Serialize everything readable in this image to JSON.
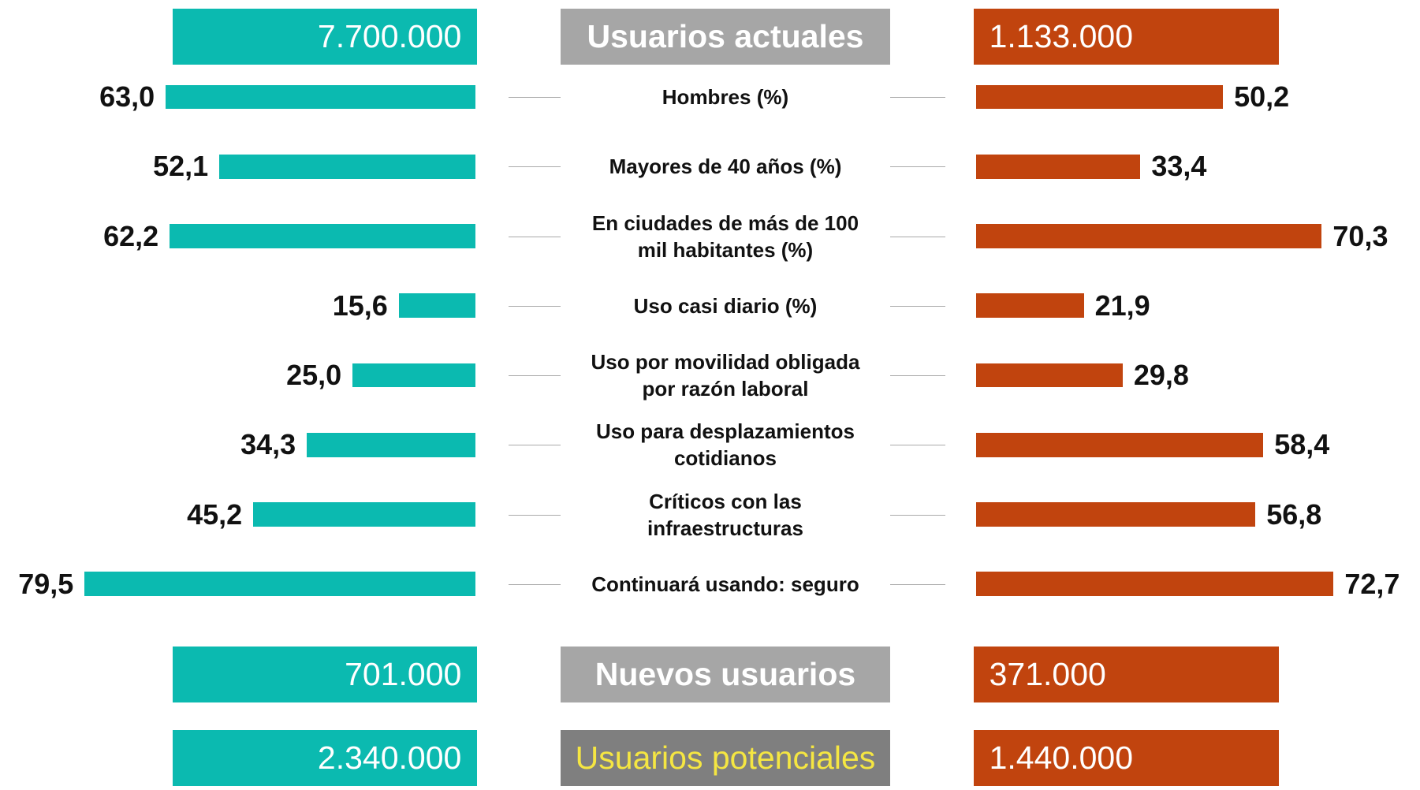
{
  "chart_data": {
    "type": "butterfly",
    "categories": [
      "Hombres (%)",
      "Mayores de 40 años (%)",
      "En ciudades de más de 100\nmil habitantes (%)",
      "Uso casi diario (%)",
      "Uso por movilidad obligada\npor razón laboral",
      "Uso para desplazamientos\ncotidianos",
      "Críticos con las\ninfraestructuras",
      "Continuará usando: seguro"
    ],
    "series": [
      {
        "color": "#0bbab0",
        "values": [
          63.0,
          52.1,
          62.2,
          15.6,
          25.0,
          34.3,
          45.2,
          79.5
        ],
        "value_labels": [
          "63,0",
          "52,1",
          "62,2",
          "15,6",
          "25,0",
          "34,3",
          "45,2",
          "79,5"
        ]
      },
      {
        "color": "#c1440e",
        "values": [
          50.2,
          33.4,
          70.3,
          21.9,
          29.8,
          58.4,
          56.8,
          72.7
        ],
        "value_labels": [
          "50,2",
          "33,4",
          "70,3",
          "21,9",
          "29,8",
          "58,4",
          "56,8",
          "72,7"
        ]
      }
    ],
    "summary": [
      {
        "label": "Usuarios actuales",
        "left": "7.700.000",
        "right": "1.133.000"
      },
      {
        "label": "Nuevos usuarios",
        "left": "701.000",
        "right": "371.000"
      },
      {
        "label": "Usuarios potenciales",
        "left": "2.340.000",
        "right": "1.440.000"
      }
    ]
  }
}
